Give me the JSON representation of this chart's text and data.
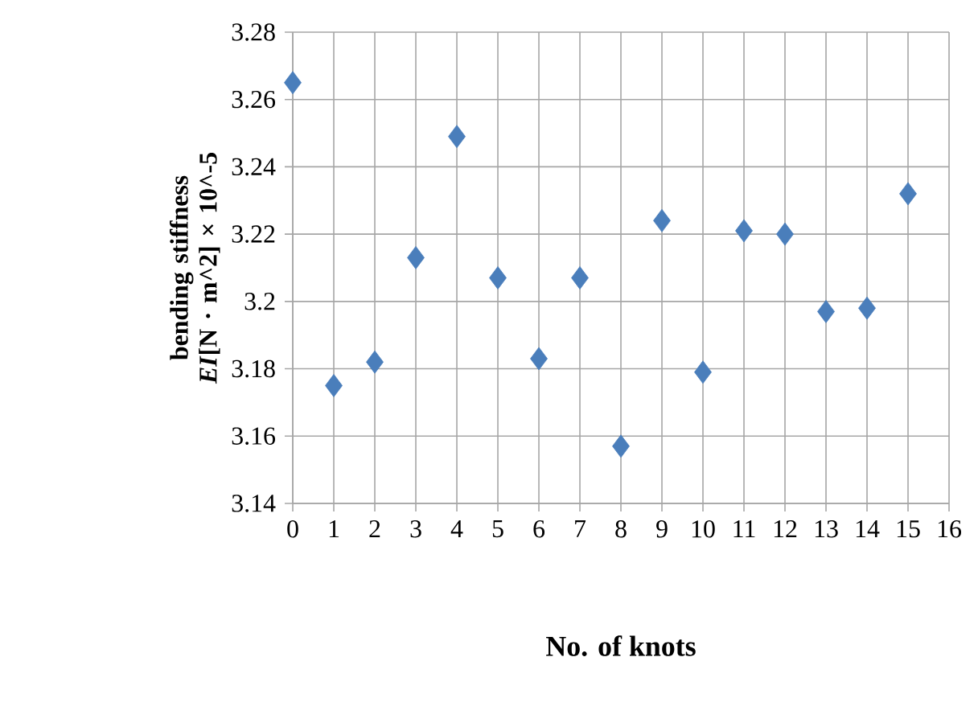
{
  "chart_data": {
    "type": "scatter",
    "xlabel": "No. of knots",
    "ylabel": "bending stiffness *EI*[N · m^2] × 10^-5",
    "x": [
      0,
      1,
      2,
      3,
      4,
      5,
      6,
      7,
      8,
      9,
      10,
      11,
      12,
      13,
      14,
      15
    ],
    "values": [
      3.265,
      3.175,
      3.182,
      3.213,
      3.249,
      3.207,
      3.183,
      3.207,
      3.157,
      3.224,
      3.179,
      3.221,
      3.22,
      3.197,
      3.198,
      3.232
    ],
    "color": "#4a7ebb",
    "marker": "diamond",
    "grid": true,
    "xlim": [
      0,
      16
    ],
    "xticks": [
      0,
      1,
      2,
      3,
      4,
      5,
      6,
      7,
      8,
      9,
      10,
      11,
      12,
      13,
      14,
      15,
      16
    ],
    "ylim": [
      3.14,
      3.28
    ],
    "yticks": [
      3.14,
      3.16,
      3.18,
      3.2,
      3.22,
      3.24,
      3.26,
      3.28
    ]
  }
}
